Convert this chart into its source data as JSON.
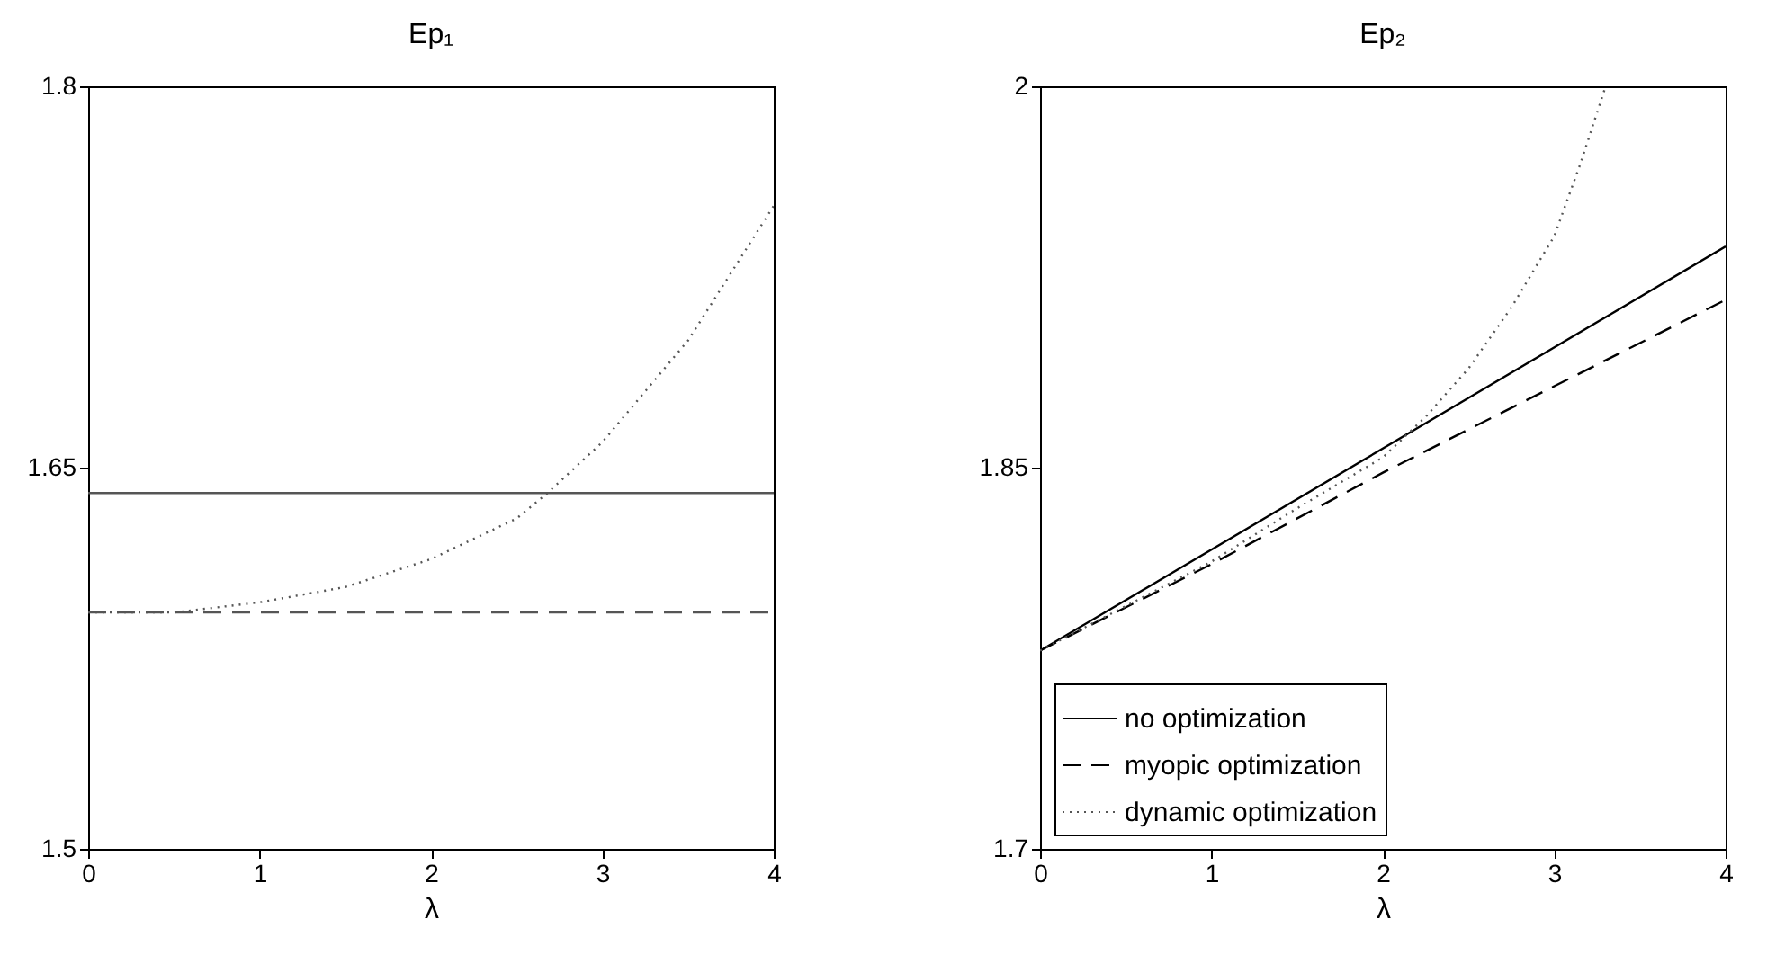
{
  "chart_data": [
    {
      "type": "line",
      "title": "Ep₁",
      "xlabel": "λ",
      "xlim": [
        0,
        4
      ],
      "xticks": [
        0,
        1,
        2,
        3,
        4
      ],
      "ylim": [
        1.5,
        1.8
      ],
      "yticks": [
        1.5,
        1.65,
        1.8
      ],
      "grid": false,
      "legend": false,
      "x": [
        0,
        0.5,
        1,
        1.5,
        2,
        2.5,
        2.68,
        3,
        3.5,
        4
      ],
      "series": [
        {
          "color": "#555555",
          "line_style": "solid",
          "values": [
            1.64,
            1.64,
            1.64,
            1.64,
            1.64,
            1.64,
            1.64,
            1.64,
            1.64,
            1.64
          ]
        },
        {
          "color": "#555555",
          "line_style": "dashed",
          "values": [
            1.593,
            1.593,
            1.593,
            1.593,
            1.593,
            1.593,
            1.593,
            1.593,
            1.593,
            1.593
          ]
        },
        {
          "color": "#555555",
          "line_style": "dotted",
          "values": [
            1.593,
            1.593,
            1.597,
            1.603,
            1.614,
            1.63,
            1.64,
            1.66,
            1.7,
            1.753
          ]
        }
      ]
    },
    {
      "type": "line",
      "title": "Ep₂",
      "xlabel": "λ",
      "xlim": [
        0,
        4
      ],
      "xticks": [
        0,
        1,
        2,
        3,
        4
      ],
      "ylim": [
        1.7,
        2
      ],
      "yticks": [
        1.7,
        1.85,
        2
      ],
      "grid": false,
      "legend": "bottom",
      "series": [
        {
          "name": "no optimization",
          "color": "#000000",
          "line_style": "solid",
          "x": [
            0,
            4
          ],
          "values": [
            1.778,
            1.937
          ]
        },
        {
          "name": "myopic optimization",
          "color": "#000000",
          "line_style": "dashed",
          "x": [
            0,
            1,
            2,
            3,
            4
          ],
          "values": [
            1.778,
            1.812,
            1.848,
            1.882,
            1.916
          ]
        },
        {
          "name": "dynamic optimization",
          "color": "#555555",
          "line_style": "dotted",
          "x": [
            0,
            1,
            1.5,
            2,
            2.25,
            2.5,
            2.75,
            3,
            3.15,
            3.3
          ],
          "values": [
            1.778,
            1.813,
            1.834,
            1.854,
            1.87,
            1.889,
            1.913,
            1.941,
            1.969,
            2.0
          ]
        }
      ]
    }
  ]
}
